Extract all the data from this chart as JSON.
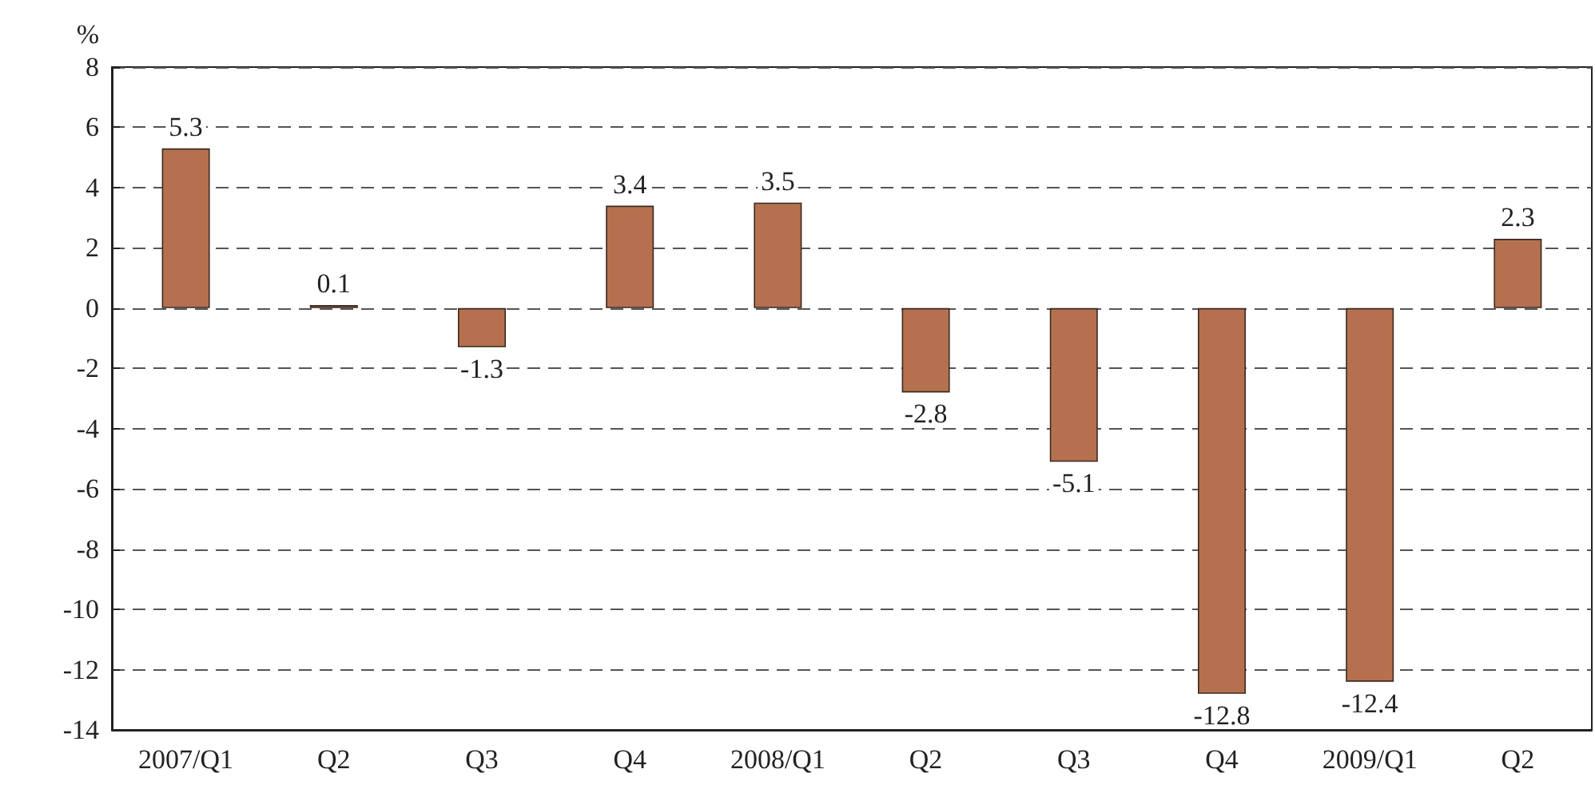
{
  "chart_data": {
    "type": "bar",
    "ylabel": "%",
    "categories": [
      "2007/Q1",
      "Q2",
      "Q3",
      "Q4",
      "2008/Q1",
      "Q2",
      "Q3",
      "Q4",
      "2009/Q1",
      "Q2"
    ],
    "values": [
      5.3,
      0.1,
      -1.3,
      3.4,
      3.5,
      -2.8,
      -5.1,
      -12.8,
      -12.4,
      2.3
    ],
    "color": "#b5714f",
    "ylim": [
      -14,
      8
    ],
    "yticks": [
      -14,
      -12,
      -10,
      -8,
      -6,
      -4,
      -2,
      0,
      2,
      4,
      6,
      8
    ],
    "grid": "y",
    "data_labels": true
  }
}
